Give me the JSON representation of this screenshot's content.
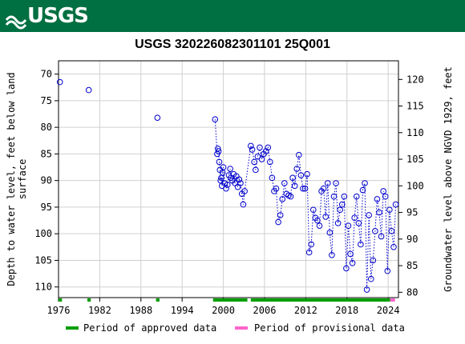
{
  "banner": {
    "logo_text": "USGS",
    "color": "#006F41"
  },
  "chart_data": {
    "type": "scatter",
    "title": "USGS 320226082301101 25Q001",
    "ylabel_left": "Depth to water level, feet below land surface",
    "ylabel_left_lines": [
      "Depth to water level, feet below land",
      "surface"
    ],
    "ylabel_right": "Groundwater level above NGVD 1929, feet",
    "xlim": [
      1976,
      2025.5
    ],
    "ylim_left": [
      112,
      67.5
    ],
    "ylim_right": [
      79,
      123.5
    ],
    "x_ticks": [
      "1976",
      "1982",
      "1988",
      "1994",
      "2000",
      "2006",
      "2012",
      "2018",
      "2024"
    ],
    "y_ticks_left": [
      "70",
      "75",
      "80",
      "85",
      "90",
      "95",
      "100",
      "105",
      "110"
    ],
    "y_ticks_right": [
      "120",
      "115",
      "110",
      "105",
      "100",
      "95",
      "90",
      "85",
      "80"
    ],
    "grid": true,
    "series": [
      {
        "name": "Depth to water level",
        "color": "#0000CC",
        "marker": "open-circle",
        "connected_dotted": true,
        "x": [
          1976.2,
          1980.4,
          1990.4,
          1998.8,
          1999.1,
          1999.2,
          1999.3,
          1999.4,
          1999.5,
          1999.6,
          1999.7,
          1999.8,
          1999.9,
          2000.0,
          2000.2,
          2000.4,
          2000.6,
          2000.8,
          2001.0,
          2001.1,
          2001.3,
          2001.5,
          2001.7,
          2001.9,
          2002.1,
          2002.3,
          2002.5,
          2002.7,
          2002.9,
          2003.1,
          2004.0,
          2004.2,
          2004.5,
          2004.7,
          2005.0,
          2005.3,
          2005.6,
          2005.9,
          2006.2,
          2006.5,
          2006.8,
          2007.1,
          2007.4,
          2007.7,
          2008.0,
          2008.3,
          2008.6,
          2008.9,
          2009.2,
          2009.5,
          2009.8,
          2010.1,
          2010.4,
          2010.7,
          2011.0,
          2011.3,
          2011.6,
          2011.9,
          2012.2,
          2012.5,
          2012.8,
          2013.1,
          2013.4,
          2013.7,
          2014.0,
          2014.3,
          2014.6,
          2014.9,
          2015.2,
          2015.5,
          2015.8,
          2016.1,
          2016.4,
          2016.7,
          2017.0,
          2017.3,
          2017.6,
          2017.9,
          2018.2,
          2018.5,
          2018.8,
          2019.1,
          2019.4,
          2019.7,
          2020.0,
          2020.3,
          2020.6,
          2020.9,
          2021.2,
          2021.5,
          2021.8,
          2022.1,
          2022.4,
          2022.7,
          2023.0,
          2023.3,
          2023.6,
          2023.9,
          2024.2,
          2024.5,
          2024.8,
          2025.1
        ],
        "y": [
          71.5,
          73.0,
          78.2,
          78.5,
          85.0,
          84.0,
          84.5,
          86.5,
          88.0,
          90.0,
          89.5,
          91.0,
          88.5,
          87.5,
          90.5,
          91.5,
          90.8,
          89.0,
          87.8,
          89.5,
          90.0,
          88.8,
          90.5,
          89.2,
          91.2,
          89.8,
          90.5,
          92.5,
          94.5,
          92.0,
          83.5,
          84.2,
          86.5,
          88.0,
          85.5,
          83.8,
          86.0,
          85.0,
          84.5,
          83.8,
          86.5,
          89.5,
          92.0,
          91.5,
          97.8,
          96.5,
          93.5,
          90.5,
          92.5,
          92.8,
          93.0,
          89.5,
          91.0,
          87.8,
          85.2,
          89.0,
          91.5,
          91.5,
          88.8,
          103.5,
          102.0,
          95.5,
          97.0,
          97.5,
          98.5,
          92.0,
          91.5,
          96.8,
          90.5,
          99.8,
          104.0,
          93.0,
          90.5,
          98.0,
          95.5,
          94.5,
          93.0,
          106.5,
          98.5,
          103.8,
          105.5,
          97.0,
          93.0,
          98.0,
          102.0,
          91.8,
          90.5,
          110.5,
          96.5,
          108.5,
          105.0,
          99.5,
          93.5,
          96.0,
          100.5,
          92.0,
          93.0,
          107.0,
          95.5,
          99.5,
          102.5,
          94.5
        ],
        "note": "values estimated from gridlines"
      }
    ],
    "approval_periods": {
      "approved": {
        "label": "Period of approved data",
        "color": "#009E00",
        "ranges": [
          [
            1976.0,
            1976.5
          ],
          [
            1980.2,
            1980.7
          ],
          [
            1990.2,
            1990.7
          ],
          [
            1998.5,
            2003.5
          ],
          [
            2004.0,
            2024.3
          ]
        ]
      },
      "provisional": {
        "label": "Period of provisional data",
        "color": "#FF66CC",
        "ranges": [
          [
            2024.3,
            2025.0
          ]
        ]
      }
    },
    "legend_position": "bottom"
  }
}
